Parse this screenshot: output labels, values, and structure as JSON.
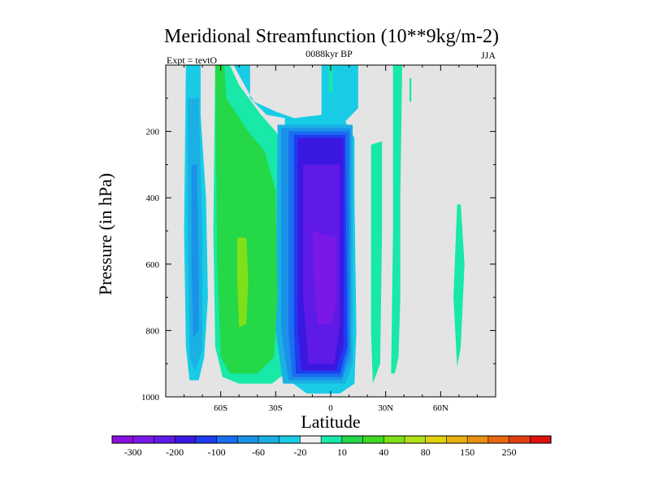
{
  "chart_data": {
    "type": "heatmap",
    "title": "Meridional Streamfunction (10**9kg/m-2)",
    "subtitle_center": "0088kyr BP",
    "subtitle_left": "Expt = tevtO",
    "subtitle_right": "JJA",
    "xlabel": "Latitude",
    "ylabel": "Pressure (in hPa)",
    "xlim": [
      -90,
      90
    ],
    "ylim": [
      1000,
      0
    ],
    "x_ticks": [
      {
        "value": -60,
        "label": "60S"
      },
      {
        "value": -30,
        "label": "30S"
      },
      {
        "value": 0,
        "label": "0"
      },
      {
        "value": 30,
        "label": "30N"
      },
      {
        "value": 60,
        "label": "60N"
      }
    ],
    "y_ticks": [
      {
        "value": 200,
        "label": "200"
      },
      {
        "value": 400,
        "label": "400"
      },
      {
        "value": 600,
        "label": "600"
      },
      {
        "value": 800,
        "label": "800"
      },
      {
        "value": 1000,
        "label": "1000"
      }
    ],
    "colorbar": {
      "colors": [
        "#8a10e0",
        "#7a18e8",
        "#5f1ae8",
        "#3a18e0",
        "#1e3cf0",
        "#1a6ef0",
        "#1a92e8",
        "#1ab0e4",
        "#18cce6",
        "#f0f0f0",
        "#18e8a8",
        "#24d848",
        "#40d820",
        "#80e018",
        "#b4e018",
        "#e0d010",
        "#e8b010",
        "#e89010",
        "#e86810",
        "#e04010",
        "#e01010"
      ],
      "tick_labels": [
        "-300",
        "-200",
        "-100",
        "-60",
        "-20",
        "10",
        "40",
        "80",
        "150",
        "250"
      ]
    },
    "contours": [
      {
        "level": "-20",
        "color": "#18cce6",
        "poly": [
          [
            -79,
            0
          ],
          [
            -71,
            0
          ],
          [
            -71,
            150
          ],
          [
            -68,
            400
          ],
          [
            -67,
            700
          ],
          [
            -69,
            880
          ],
          [
            -72,
            950
          ],
          [
            -77,
            950
          ],
          [
            -79,
            850
          ],
          [
            -80,
            500
          ]
        ]
      },
      {
        "level": "-20",
        "color": "#18cce6",
        "poly": [
          [
            -53,
            0
          ],
          [
            -44,
            0
          ],
          [
            -44,
            100
          ],
          [
            -35,
            150
          ],
          [
            -25,
            160
          ],
          [
            -25,
            700
          ],
          [
            -23,
            950
          ],
          [
            -13,
            990
          ],
          [
            5,
            990
          ],
          [
            13,
            960
          ],
          [
            14,
            800
          ],
          [
            13,
            400
          ],
          [
            13,
            220
          ],
          [
            8,
            170
          ],
          [
            15,
            130
          ],
          [
            15,
            0
          ],
          [
            -5,
            0
          ],
          [
            -5,
            150
          ],
          [
            -20,
            160
          ],
          [
            -30,
            140
          ],
          [
            -42,
            110
          ],
          [
            -50,
            30
          ]
        ]
      },
      {
        "level": "10",
        "color": "#18e8a8",
        "poly": [
          [
            -63,
            0
          ],
          [
            -55,
            0
          ],
          [
            -50,
            60
          ],
          [
            -38,
            150
          ],
          [
            -30,
            200
          ],
          [
            -24,
            260
          ],
          [
            -24,
            800
          ],
          [
            -25,
            930
          ],
          [
            -32,
            960
          ],
          [
            -50,
            960
          ],
          [
            -59,
            940
          ],
          [
            -63,
            850
          ],
          [
            -64,
            500
          ]
        ]
      },
      {
        "level": "10",
        "color": "#18e8a8",
        "poly": [
          [
            -1,
            0
          ],
          [
            1,
            0
          ],
          [
            1,
            80
          ],
          [
            -1,
            80
          ]
        ]
      },
      {
        "level": "10",
        "color": "#18e8a8",
        "poly": [
          [
            34,
            0
          ],
          [
            39,
            0
          ],
          [
            38,
            400
          ],
          [
            38,
            700
          ],
          [
            37,
            880
          ],
          [
            35,
            930
          ],
          [
            33,
            930
          ],
          [
            34,
            500
          ]
        ]
      },
      {
        "level": "10",
        "color": "#18e8a8",
        "poly": [
          [
            22,
            240
          ],
          [
            28,
            230
          ],
          [
            28,
            500
          ],
          [
            27,
            900
          ],
          [
            23,
            960
          ],
          [
            22,
            800
          ]
        ]
      },
      {
        "level": "10",
        "color": "#18e8a8",
        "poly": [
          [
            43,
            40
          ],
          [
            44,
            40
          ],
          [
            44,
            110
          ],
          [
            43,
            110
          ]
        ]
      },
      {
        "level": "10",
        "color": "#18e8a8",
        "poly": [
          [
            69,
            420
          ],
          [
            71,
            420
          ],
          [
            73,
            600
          ],
          [
            71,
            850
          ],
          [
            69,
            910
          ],
          [
            67,
            700
          ]
        ]
      },
      {
        "level": "-60",
        "color": "#1ab0e4",
        "poly": [
          [
            -78,
            100
          ],
          [
            -72,
            100
          ],
          [
            -70,
            500
          ],
          [
            -70,
            860
          ],
          [
            -74,
            920
          ],
          [
            -77,
            880
          ],
          [
            -78,
            500
          ]
        ]
      },
      {
        "level": "-60",
        "color": "#1ab0e4",
        "poly": [
          [
            -29,
            180
          ],
          [
            12,
            180
          ],
          [
            12,
            900
          ],
          [
            8,
            960
          ],
          [
            -26,
            960
          ],
          [
            -30,
            800
          ]
        ]
      },
      {
        "level": "40",
        "color": "#24d848",
        "poly": [
          [
            -63,
            0
          ],
          [
            -58,
            0
          ],
          [
            -57,
            100
          ],
          [
            -45,
            200
          ],
          [
            -36,
            260
          ],
          [
            -30,
            380
          ],
          [
            -29,
            700
          ],
          [
            -31,
            880
          ],
          [
            -40,
            930
          ],
          [
            -55,
            930
          ],
          [
            -60,
            880
          ],
          [
            -62,
            600
          ]
        ]
      },
      {
        "level": "-100",
        "color": "#1a92e8",
        "poly": [
          [
            -76,
            300
          ],
          [
            -73,
            300
          ],
          [
            -72,
            600
          ],
          [
            -72,
            800
          ],
          [
            -75,
            820
          ],
          [
            -76,
            600
          ]
        ]
      },
      {
        "level": "-100",
        "color": "#1a92e8",
        "poly": [
          [
            -27,
            190
          ],
          [
            11,
            190
          ],
          [
            11,
            880
          ],
          [
            6,
            950
          ],
          [
            -23,
            950
          ],
          [
            -27,
            800
          ]
        ]
      },
      {
        "level": "80",
        "color": "#80e018",
        "poly": [
          [
            -51,
            520
          ],
          [
            -46,
            520
          ],
          [
            -45,
            650
          ],
          [
            -46,
            780
          ],
          [
            -50,
            790
          ],
          [
            -51,
            650
          ]
        ]
      },
      {
        "level": "-140",
        "color": "#1a6ef0",
        "poly": [
          [
            -23,
            200
          ],
          [
            10,
            200
          ],
          [
            10,
            860
          ],
          [
            6,
            940
          ],
          [
            -21,
            940
          ],
          [
            -23,
            800
          ]
        ]
      },
      {
        "level": "-180",
        "color": "#1e3cf0",
        "poly": [
          [
            -20,
            210
          ],
          [
            8,
            210
          ],
          [
            9,
            850
          ],
          [
            5,
            930
          ],
          [
            -19,
            930
          ],
          [
            -20,
            800
          ]
        ]
      },
      {
        "level": "-220",
        "color": "#3a18e0",
        "poly": [
          [
            -18,
            220
          ],
          [
            7,
            220
          ],
          [
            7,
            850
          ],
          [
            3,
            920
          ],
          [
            -16,
            920
          ],
          [
            -18,
            800
          ]
        ]
      },
      {
        "level": "-260",
        "color": "#5f1ae8",
        "poly": [
          [
            -15,
            300
          ],
          [
            5,
            300
          ],
          [
            5,
            780
          ],
          [
            2,
            900
          ],
          [
            -12,
            900
          ],
          [
            -15,
            700
          ]
        ]
      },
      {
        "level": "-300",
        "color": "#7a18e8",
        "poly": [
          [
            -10,
            500
          ],
          [
            3,
            520
          ],
          [
            3,
            720
          ],
          [
            0,
            780
          ],
          [
            -7,
            780
          ],
          [
            -9,
            650
          ]
        ]
      }
    ]
  }
}
